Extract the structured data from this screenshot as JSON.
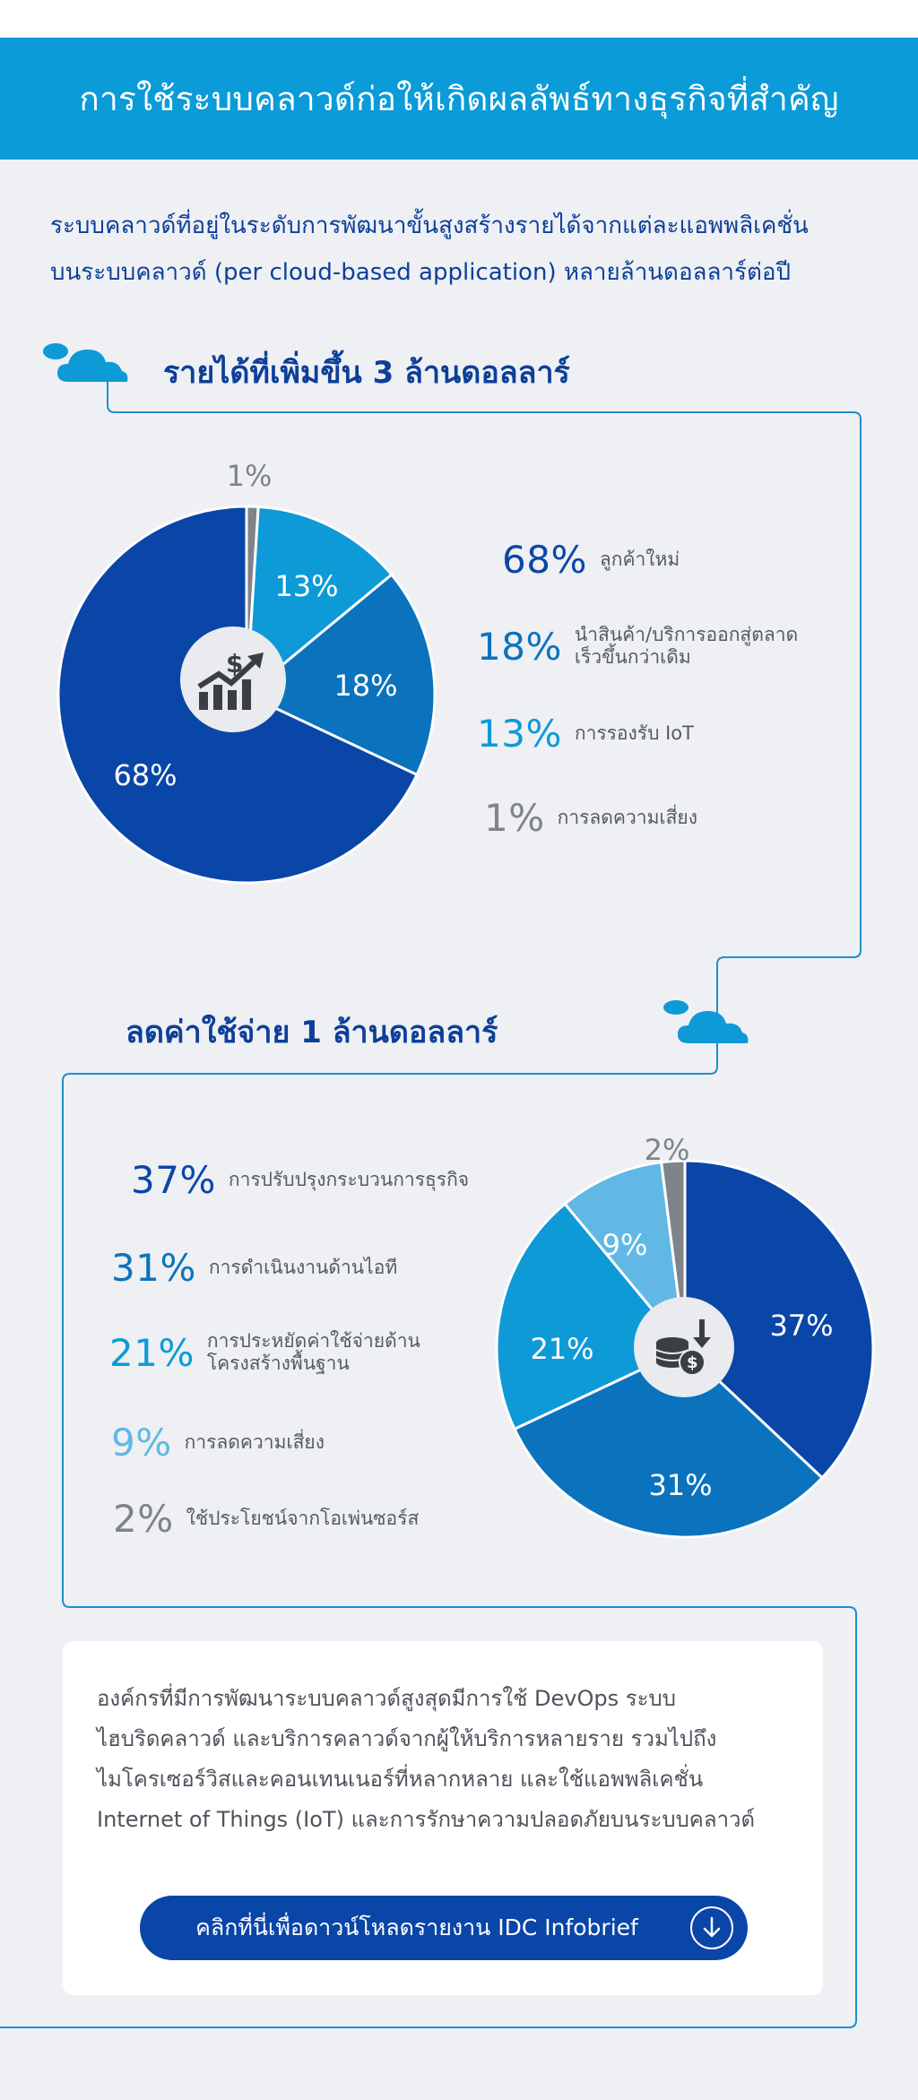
{
  "header": {
    "title": "การใช้ระบบคลาวด์ก่อให้เกิดผลลัพธ์ทางธุรกิจที่สำคัญ"
  },
  "intro": {
    "line1": "ระบบคลาวด์ที่อยู่ในระดับการพัฒนาขั้นสูงสร้างรายได้จากแต่ละแอพพลิเคชั่น",
    "line2": "บนระบบคลาวด์  (per cloud-based application) หลายล้านดอลลาร์ต่อปี"
  },
  "colors": {
    "header_bg": "#0a9bd8",
    "dark_blue": "#0a46a8",
    "mid_blue": "#0b73bd",
    "light_blue": "#0e9ad7",
    "pale_blue": "#62b8e4",
    "gray": "#808389",
    "title_blue": "#0d3f99",
    "connector": "#1f8fcf"
  },
  "icons": {
    "cloud": "cloud-icon",
    "growth": "dollar-growth-chart-icon",
    "coins": "coins-dollar-down-arrow-icon",
    "download": "download-arrow-icon"
  },
  "section1": {
    "title": "รายได้ที่เพิ่มขึ้น 3 ล้านดอลลาร์",
    "legend": [
      {
        "pct": "68%",
        "lines": [
          "ลูกค้าใหม่"
        ],
        "color": "#0a46a8"
      },
      {
        "pct": "18%",
        "lines": [
          "นำสินค้า/บริการออกสู่ตลาด",
          "เร็วขึ้นกว่าเดิม"
        ],
        "color": "#0b73bd"
      },
      {
        "pct": "13%",
        "lines": [
          "การรองรับ IoT"
        ],
        "color": "#0e9ad7"
      },
      {
        "pct": "1%",
        "lines": [
          "การลดความเสี่ยง"
        ],
        "color": "#808389"
      }
    ]
  },
  "section2": {
    "title": "ลดค่าใช้จ่าย 1 ล้านดอลลาร์",
    "legend": [
      {
        "pct": "37%",
        "lines": [
          "การปรับปรุงกระบวนการธุรกิจ"
        ],
        "color": "#0a46a8"
      },
      {
        "pct": "31%",
        "lines": [
          "การดำเนินงานด้านไอที"
        ],
        "color": "#0b73bd"
      },
      {
        "pct": "21%",
        "lines": [
          "การประหยัดค่าใช้จ่ายด้าน",
          "โครงสร้างพื้นฐาน"
        ],
        "color": "#0e9ad7"
      },
      {
        "pct": "9%",
        "lines": [
          "การลดความเสี่ยง"
        ],
        "color": "#62b8e4"
      },
      {
        "pct": "2%",
        "lines": [
          "ใช้ประโยชน์จากโอเพ่นซอร์ส"
        ],
        "color": "#808389"
      }
    ]
  },
  "chart_data": [
    {
      "type": "pie",
      "title": "รายได้ที่เพิ่มขึ้น 3 ล้านดอลลาร์",
      "categories": [
        "การลดความเสี่ยง",
        "การรองรับ IoT",
        "นำสินค้า/บริการออกสู่ตลาดเร็วขึ้นกว่าเดิม",
        "ลูกค้าใหม่"
      ],
      "values": [
        1,
        13,
        18,
        68
      ],
      "labels": [
        "1%",
        "13%",
        "18%",
        "68%"
      ],
      "colors": [
        "#808389",
        "#0e9ad7",
        "#0b73bd",
        "#0a46a8"
      ]
    },
    {
      "type": "pie",
      "title": "ลดค่าใช้จ่าย 1 ล้านดอลลาร์",
      "categories": [
        "การปรับปรุงกระบวนการธุรกิจ",
        "การดำเนินงานด้านไอที",
        "การประหยัดค่าใช้จ่ายด้านโครงสร้างพื้นฐาน",
        "การลดความเสี่ยง",
        "ใช้ประโยชน์จากโอเพ่นซอร์ส"
      ],
      "values": [
        37,
        31,
        21,
        9,
        2
      ],
      "labels": [
        "37%",
        "31%",
        "21%",
        "9%",
        "2%"
      ],
      "colors": [
        "#0a46a8",
        "#0b73bd",
        "#0e9ad7",
        "#62b8e4",
        "#808389"
      ]
    }
  ],
  "card": {
    "lines": [
      "องค์กรที่มีการพัฒนาระบบคลาวด์สูงสุดมีการใช้ DevOps ระบบ",
      "ไฮบริดคลาวด์ และบริการคลาวด์จากผู้ให้บริการหลายราย รวมไปถึง",
      "ไมโครเซอร์วิสและคอนเทนเนอร์ที่หลากหลาย และใช้แอพพลิเคชั่น",
      "Internet of Things (IoT) และการรักษาความปลอดภัยบนระบบคลาวด์"
    ],
    "cta_label": "คลิกที่นี่เพื่อดาวน์โหลดรายงาน IDC Infobrief"
  }
}
